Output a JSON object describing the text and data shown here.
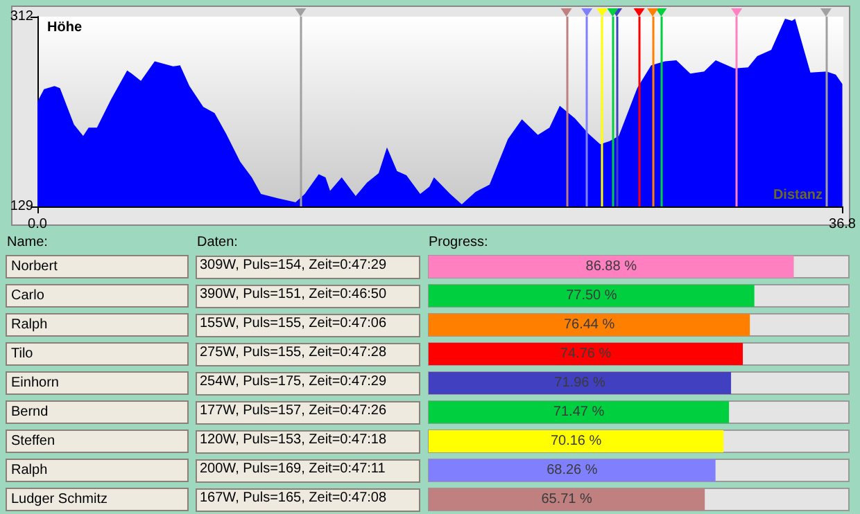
{
  "chart_data": [
    {
      "type": "area",
      "title": "Höhe",
      "xlabel": "Distanz",
      "color": "#0000ff",
      "x": [
        0,
        0.3,
        0.78,
        1.03,
        1.67,
        2.09,
        2.34,
        2.72,
        3.36,
        4.1,
        4.31,
        4.73,
        5.36,
        6.2,
        6.52,
        6.95,
        7.58,
        8.1,
        8.63,
        9.27,
        9.8,
        10.22,
        10.96,
        11.8,
        12.22,
        12.86,
        13.17,
        13.38,
        13.91,
        14.55,
        15.07,
        15.6,
        15.98,
        16.44,
        16.87,
        17.5,
        17.92,
        18.13,
        18.87,
        19.4,
        20.03,
        20.67,
        21.51,
        22.15,
        22.88,
        23.41,
        23.88,
        24.57,
        25.2,
        25.73,
        26.16,
        26.58,
        27.42,
        28.06,
        28.69,
        29.21,
        29.85,
        30.48,
        31.01,
        31.86,
        32.49,
        32.91,
        33.55,
        34.18,
        34.5,
        34.64,
        35.34,
        36.08,
        36.5,
        36.8
      ],
      "values": [
        230,
        242,
        245,
        243,
        208,
        197,
        205,
        205,
        232,
        260,
        257,
        250,
        269,
        264,
        265,
        245,
        225,
        219,
        199,
        172,
        157,
        141,
        137,
        133,
        141,
        160,
        157,
        144,
        157,
        139,
        152,
        161,
        186,
        163,
        159,
        141,
        148,
        157,
        141,
        131,
        143,
        150,
        194,
        213,
        198,
        205,
        226,
        214,
        199,
        189,
        192,
        197,
        243,
        265,
        269,
        270,
        257,
        259,
        270,
        262,
        263,
        274,
        280,
        310,
        308,
        310,
        258,
        259,
        256,
        247
      ],
      "xlim": [
        0,
        36.8
      ],
      "xticks": [
        {
          "value": 0,
          "label": "0.0"
        },
        {
          "value": 36.8,
          "label": "36.8"
        }
      ],
      "ylim": [
        129,
        312
      ],
      "yticks": [
        129,
        312
      ],
      "grid": false,
      "ref_lines": [
        {
          "axis": "x",
          "value": 12.03,
          "color": "#a0a0a0"
        },
        {
          "axis": "x",
          "value": 36.05,
          "color": "#a0a0a0"
        },
        {
          "axis": "x",
          "value": 31.97,
          "color": "#ff80c0"
        },
        {
          "axis": "x",
          "value": 28.52,
          "color": "#00d040"
        },
        {
          "axis": "x",
          "value": 28.13,
          "color": "#ff8000"
        },
        {
          "axis": "x",
          "value": 27.51,
          "color": "#ff0000"
        },
        {
          "axis": "x",
          "value": 26.48,
          "color": "#4040c0"
        },
        {
          "axis": "x",
          "value": 26.3,
          "color": "#00d040"
        },
        {
          "axis": "x",
          "value": 25.82,
          "color": "#ffff00"
        },
        {
          "axis": "x",
          "value": 25.12,
          "color": "#8080ff"
        },
        {
          "axis": "x",
          "value": 24.18,
          "color": "#c08080"
        }
      ]
    },
    {
      "type": "bar",
      "orientation": "horizontal",
      "title": "Progress:",
      "ylabel": "Name:",
      "categories": [
        "Norbert",
        "Carlo",
        "Ralph",
        "Tilo",
        "Einhorn",
        "Bernd",
        "Steffen",
        "Ralph",
        "Ludger Schmitz"
      ],
      "values": [
        86.88,
        77.5,
        76.44,
        74.76,
        71.96,
        71.47,
        70.16,
        68.26,
        65.71
      ],
      "value_labels": [
        "86.88 %",
        "77.50 %",
        "76.44 %",
        "74.76 %",
        "71.96 %",
        "71.47 %",
        "70.16 %",
        "68.26 %",
        "65.71 %"
      ],
      "colors": [
        "#ff80c0",
        "#00d040",
        "#ff8000",
        "#ff0000",
        "#4040c0",
        "#00d040",
        "#ffff00",
        "#8080ff",
        "#c08080"
      ],
      "xlim": [
        0,
        100
      ],
      "tick_labels": "y",
      "annotations": [
        "Daten:",
        "309W, Puls=154, Zeit=0:47:29",
        "390W, Puls=151, Zeit=0:46:50",
        "155W, Puls=155, Zeit=0:47:06",
        "275W, Puls=155, Zeit=0:47:28",
        "254W, Puls=175, Zeit=0:47:29",
        "177W, Puls=157, Zeit=0:47:26",
        "120W, Puls=153, Zeit=0:47:18",
        "200W, Puls=169, Zeit=0:47:11",
        "167W, Puls=165, Zeit=0:47:08"
      ]
    }
  ]
}
